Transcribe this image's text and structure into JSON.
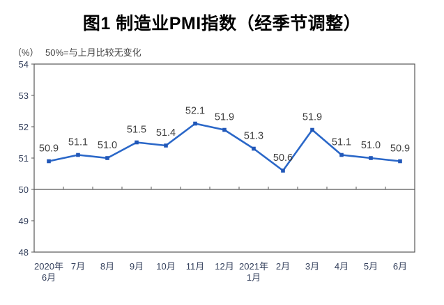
{
  "page": {
    "background": "#ffffff"
  },
  "chart_data": {
    "type": "line",
    "title": "图1 制造业PMI指数（经季节调整）",
    "unit_label": "（%）",
    "note": "50%=与上月比较无变化",
    "x_labels": [
      [
        "2020年",
        "6月"
      ],
      [
        "7月"
      ],
      [
        "8月"
      ],
      [
        "9月"
      ],
      [
        "10月"
      ],
      [
        "11月"
      ],
      [
        "12月"
      ],
      [
        "2021年",
        "1月"
      ],
      [
        "2月"
      ],
      [
        "3月"
      ],
      [
        "4月"
      ],
      [
        "5月"
      ],
      [
        "6月"
      ]
    ],
    "values": [
      50.9,
      51.1,
      51.0,
      51.5,
      51.4,
      52.1,
      51.9,
      51.3,
      50.6,
      51.9,
      51.1,
      51.0,
      50.9
    ],
    "y_ticks": [
      48,
      49,
      50,
      51,
      52,
      53,
      54
    ],
    "ylim": [
      48,
      54
    ],
    "reference_value": 50,
    "grid": false,
    "legend": "none",
    "marker_shape": "square",
    "colors": {
      "line": "#2a67c8",
      "marker": "#2157b8",
      "axis": "#565656",
      "axis_label": "#34405c",
      "data_label": "#3d3d3d",
      "title": "#000000",
      "note": "#3f3f3f"
    }
  }
}
